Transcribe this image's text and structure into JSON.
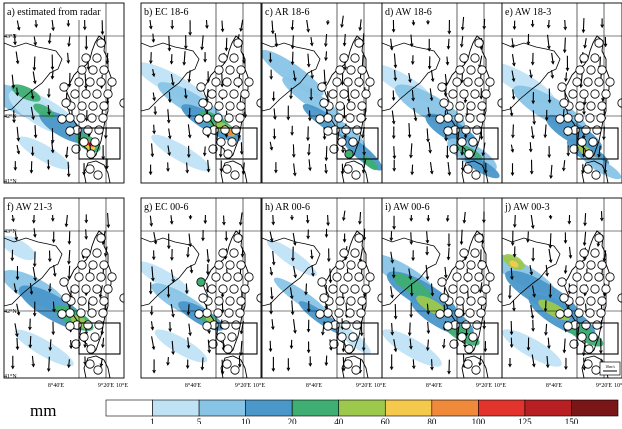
{
  "panels": [
    {
      "label": "a) estimated from radar",
      "style": "radar"
    },
    {
      "label": "b) EC 18-6",
      "style": "ec186"
    },
    {
      "label": "c) AR 18-6",
      "style": "ar186"
    },
    {
      "label": "d) AW 18-6",
      "style": "aw186"
    },
    {
      "label": "e) AW 18-3",
      "style": "aw183"
    },
    {
      "label": "f) AW 21-3",
      "style": "aw213"
    },
    {
      "label": "g) EC 00-6",
      "style": "ec006"
    },
    {
      "label": "h) AR 00-6",
      "style": "ar006"
    },
    {
      "label": "i) AW 00-6",
      "style": "aw006"
    },
    {
      "label": "j) AW 00-3",
      "style": "aw003"
    }
  ],
  "lat_labels": [
    "43°N",
    "42°N",
    "41°N"
  ],
  "lon_labels": [
    "8°40'E",
    "9°20'E",
    "10°E"
  ],
  "scale_label": "10m/s",
  "colorbar": {
    "unit": "mm",
    "ticks": [
      "1",
      "5",
      "10",
      "20",
      "40",
      "60",
      "80",
      "100",
      "125",
      "150"
    ],
    "colors": [
      "#ffffff",
      "#bfe3f5",
      "#88c4e6",
      "#4a97c9",
      "#3fae73",
      "#9cc84c",
      "#f5c94b",
      "#f08a3b",
      "#e2332d",
      "#b81f23",
      "#7a1518"
    ]
  }
}
